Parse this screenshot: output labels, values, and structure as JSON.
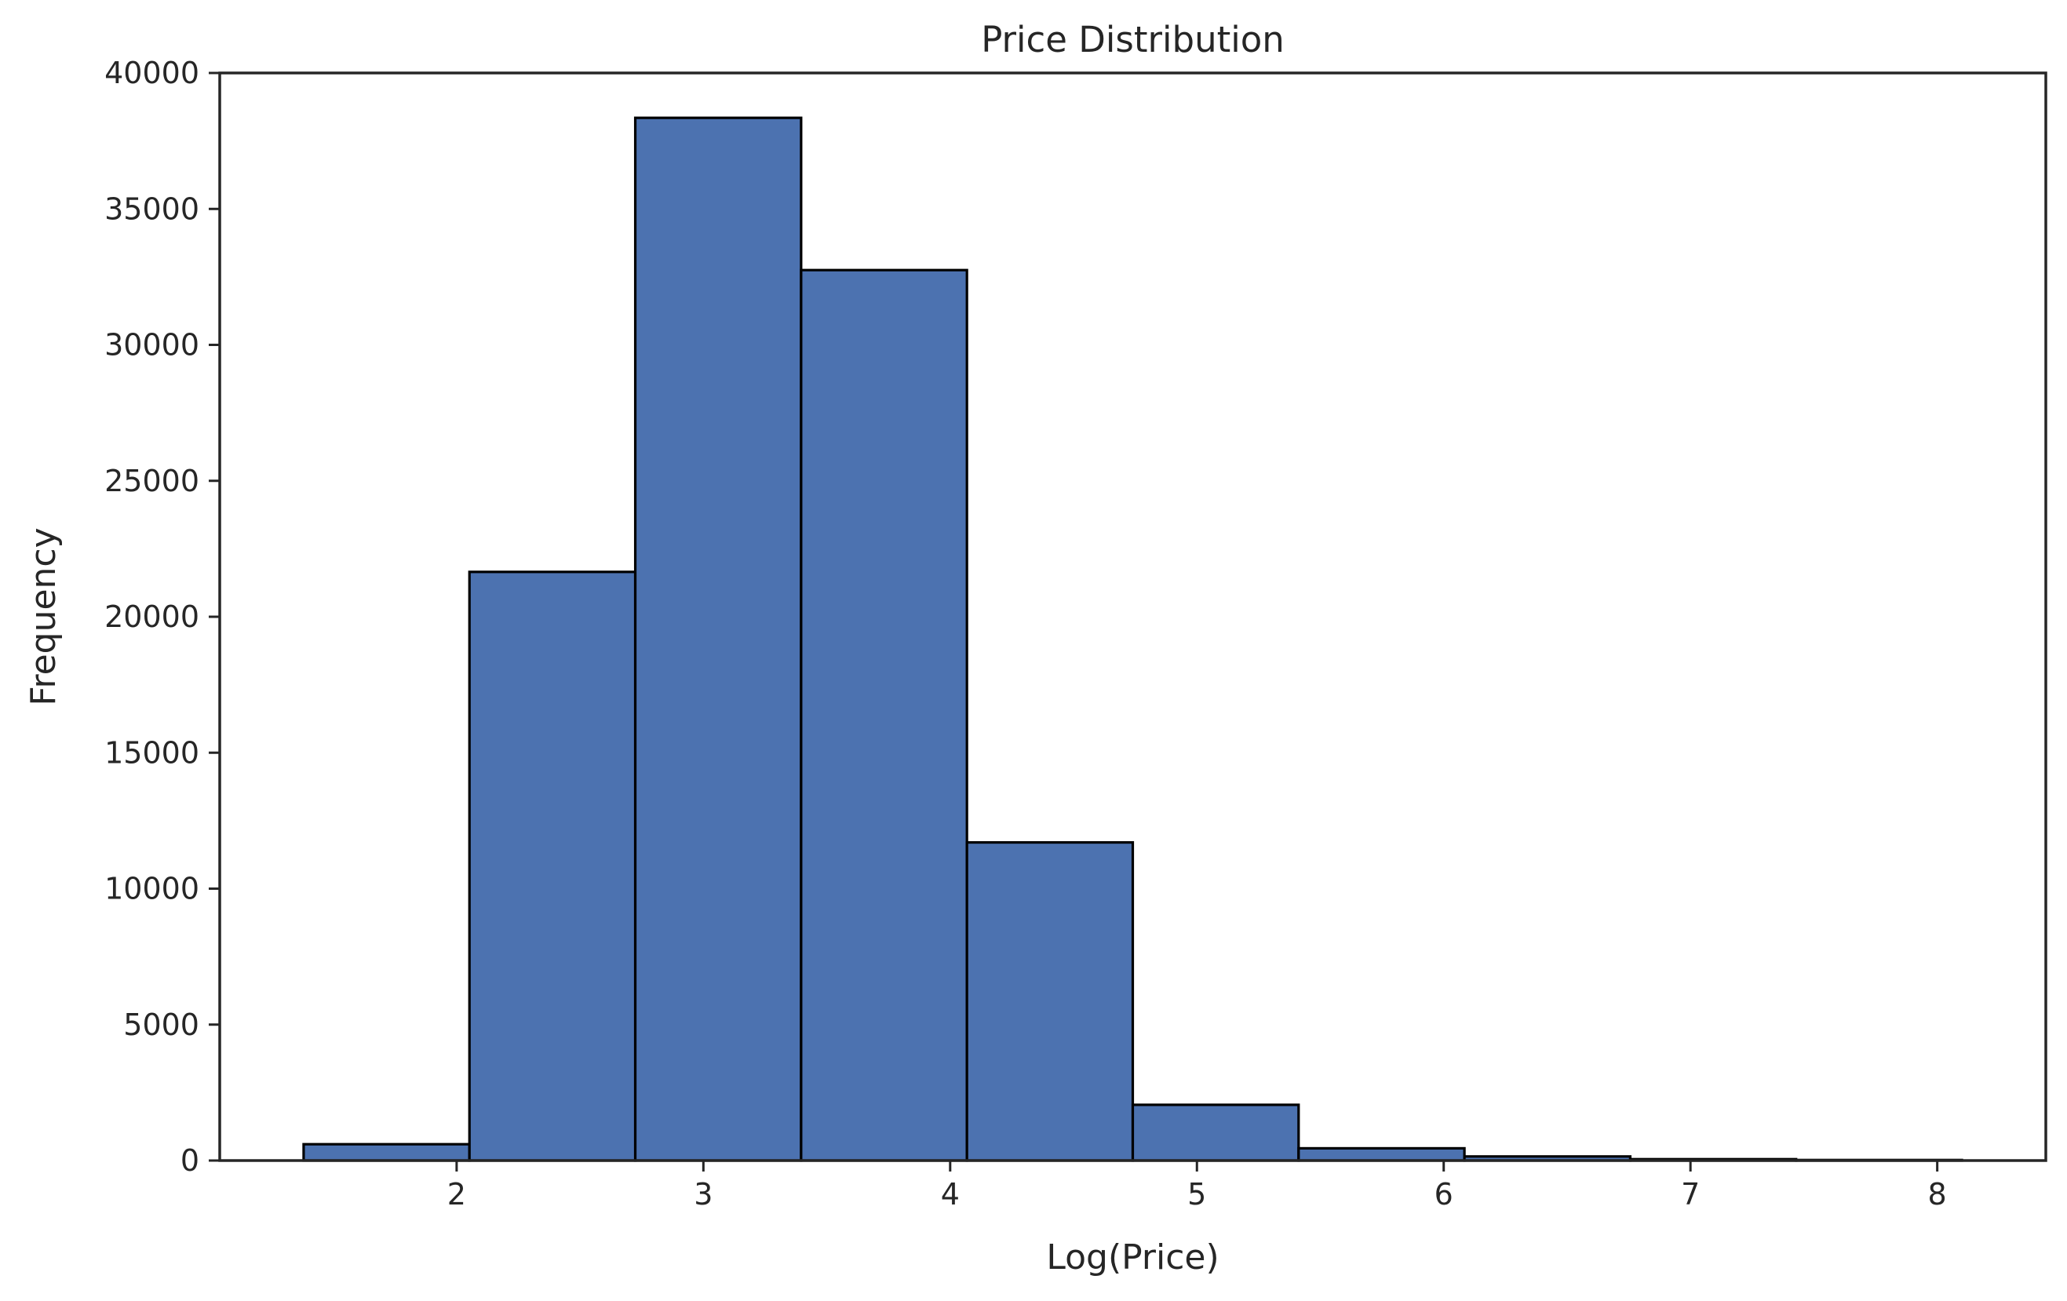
{
  "chart_data": {
    "type": "bar",
    "title": "Price Distribution",
    "xlabel": "Log(Price)",
    "ylabel": "Frequency",
    "xlim": [
      1.04,
      8.44
    ],
    "ylim": [
      0,
      40000
    ],
    "xticks": [
      2,
      3,
      4,
      5,
      6,
      7,
      8
    ],
    "yticks": [
      0,
      5000,
      10000,
      15000,
      20000,
      25000,
      30000,
      35000,
      40000
    ],
    "bin_edges": [
      1.38,
      2.052,
      2.724,
      3.396,
      4.068,
      4.74,
      5.412,
      6.084,
      6.756,
      7.428,
      8.1
    ],
    "values": [
      600,
      21650,
      38350,
      32750,
      11700,
      2050,
      450,
      150,
      50,
      20
    ],
    "grid": false,
    "colors": {
      "bar_fill": "#4c72b0",
      "bar_edge": "#000000",
      "axis": "#262626"
    }
  }
}
